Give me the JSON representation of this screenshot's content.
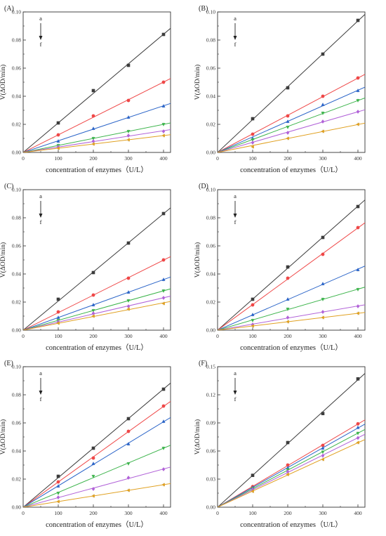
{
  "series_colors": [
    "#3c3c3c",
    "#ef4747",
    "#2a64c8",
    "#3cb44b",
    "#b162d8",
    "#e0a020"
  ],
  "chart_data": [
    {
      "panel_label": "(A)",
      "type": "scatter",
      "xlabel": "concentration of enzymes（U/L）",
      "ylabel": "V(ΔOD/min)",
      "xlim": [
        0,
        420
      ],
      "ylim": [
        0,
        0.1
      ],
      "xticks": [
        0,
        100,
        200,
        300,
        400
      ],
      "yticks": [
        0,
        0.02,
        0.04,
        0.06,
        0.08,
        0.1
      ],
      "ytick_labels": [
        "0.00",
        "0.02",
        "0.04",
        "0.06",
        "0.08",
        "0.10"
      ],
      "arrow_top_label": "a",
      "arrow_bottom_label": "f",
      "x": [
        0,
        100,
        200,
        300,
        400
      ],
      "series": [
        {
          "marker": "square",
          "values": [
            0,
            0.021,
            0.044,
            0.062,
            0.084
          ]
        },
        {
          "marker": "circle",
          "values": [
            0,
            0.0125,
            0.026,
            0.037,
            0.05
          ]
        },
        {
          "marker": "triangle-up",
          "values": [
            0,
            0.008,
            0.017,
            0.025,
            0.033
          ]
        },
        {
          "marker": "triangle-down",
          "values": [
            0,
            0.005,
            0.01,
            0.015,
            0.02
          ]
        },
        {
          "marker": "diamond",
          "values": [
            0,
            0.004,
            0.008,
            0.012,
            0.015
          ]
        },
        {
          "marker": "triangle-left",
          "values": [
            0,
            0.003,
            0.006,
            0.009,
            0.012
          ]
        }
      ]
    },
    {
      "panel_label": "(B)",
      "type": "scatter",
      "xlabel": "concentration of enzymes（U/L）",
      "ylabel": "V(ΔOD/min)",
      "xlim": [
        0,
        420
      ],
      "ylim": [
        0,
        0.1
      ],
      "xticks": [
        0,
        100,
        200,
        300,
        400
      ],
      "yticks": [
        0,
        0.02,
        0.04,
        0.06,
        0.08,
        0.1
      ],
      "ytick_labels": [
        "0.00",
        "0.02",
        "0.04",
        "0.06",
        "0.08",
        "0.10"
      ],
      "arrow_top_label": "a",
      "arrow_bottom_label": "f",
      "x": [
        0,
        100,
        200,
        300,
        400
      ],
      "series": [
        {
          "marker": "square",
          "values": [
            0,
            0.024,
            0.046,
            0.07,
            0.094
          ]
        },
        {
          "marker": "circle",
          "values": [
            0,
            0.013,
            0.026,
            0.04,
            0.053
          ]
        },
        {
          "marker": "triangle-up",
          "values": [
            0,
            0.01,
            0.022,
            0.034,
            0.044
          ]
        },
        {
          "marker": "triangle-down",
          "values": [
            0,
            0.009,
            0.018,
            0.028,
            0.037
          ]
        },
        {
          "marker": "diamond",
          "values": [
            0,
            0.007,
            0.014,
            0.022,
            0.029
          ]
        },
        {
          "marker": "triangle-left",
          "values": [
            0,
            0.004,
            0.01,
            0.015,
            0.02
          ]
        }
      ]
    },
    {
      "panel_label": "(C)",
      "type": "scatter",
      "xlabel": "concentration of enzymes（U/L）",
      "ylabel": "V(ΔOD/min)",
      "xlim": [
        0,
        420
      ],
      "ylim": [
        0,
        0.1
      ],
      "xticks": [
        0,
        100,
        200,
        300,
        400
      ],
      "yticks": [
        0,
        0.02,
        0.04,
        0.06,
        0.08,
        0.1
      ],
      "ytick_labels": [
        "0.00",
        "0.02",
        "0.04",
        "0.06",
        "0.08",
        "0.10"
      ],
      "arrow_top_label": "a",
      "arrow_bottom_label": "f",
      "x": [
        0,
        100,
        200,
        300,
        400
      ],
      "series": [
        {
          "marker": "square",
          "values": [
            0,
            0.022,
            0.041,
            0.062,
            0.083
          ]
        },
        {
          "marker": "circle",
          "values": [
            0,
            0.013,
            0.025,
            0.037,
            0.05
          ]
        },
        {
          "marker": "triangle-up",
          "values": [
            0,
            0.009,
            0.018,
            0.027,
            0.036
          ]
        },
        {
          "marker": "triangle-down",
          "values": [
            0,
            0.007,
            0.014,
            0.021,
            0.028
          ]
        },
        {
          "marker": "diamond",
          "values": [
            0,
            0.006,
            0.012,
            0.017,
            0.023
          ]
        },
        {
          "marker": "triangle-left",
          "values": [
            0,
            0.005,
            0.01,
            0.015,
            0.019
          ]
        }
      ]
    },
    {
      "panel_label": "(D)",
      "type": "scatter",
      "xlabel": "concentration of enzymes（U/L）",
      "ylabel": "V(ΔOD/min)",
      "xlim": [
        0,
        420
      ],
      "ylim": [
        0,
        0.1
      ],
      "xticks": [
        0,
        100,
        200,
        300,
        400
      ],
      "yticks": [
        0,
        0.02,
        0.04,
        0.06,
        0.08,
        0.1
      ],
      "ytick_labels": [
        "0.00",
        "0.02",
        "0.04",
        "0.06",
        "0.08",
        "0.10"
      ],
      "arrow_top_label": "a",
      "arrow_bottom_label": "f",
      "x": [
        0,
        100,
        200,
        300,
        400
      ],
      "series": [
        {
          "marker": "square",
          "values": [
            0,
            0.022,
            0.045,
            0.066,
            0.088
          ]
        },
        {
          "marker": "circle",
          "values": [
            0,
            0.018,
            0.037,
            0.054,
            0.073
          ]
        },
        {
          "marker": "triangle-up",
          "values": [
            0,
            0.011,
            0.022,
            0.033,
            0.043
          ]
        },
        {
          "marker": "triangle-down",
          "values": [
            0,
            0.007,
            0.015,
            0.022,
            0.029
          ]
        },
        {
          "marker": "diamond",
          "values": [
            0,
            0.004,
            0.009,
            0.013,
            0.017
          ]
        },
        {
          "marker": "triangle-left",
          "values": [
            0,
            0.003,
            0.006,
            0.009,
            0.012
          ]
        }
      ]
    },
    {
      "panel_label": "(E)",
      "type": "scatter",
      "xlabel": "concentration of enzymes（U/L）",
      "ylabel": "V(ΔOD/min)",
      "xlim": [
        0,
        420
      ],
      "ylim": [
        0,
        0.1
      ],
      "xticks": [
        0,
        100,
        200,
        300,
        400
      ],
      "yticks": [
        0,
        0.02,
        0.04,
        0.06,
        0.08,
        0.1
      ],
      "ytick_labels": [
        "0.00",
        "0.02",
        "0.04",
        "0.06",
        "0.08",
        "0.10"
      ],
      "arrow_top_label": "a",
      "arrow_bottom_label": "f",
      "x": [
        0,
        100,
        200,
        300,
        400
      ],
      "series": [
        {
          "marker": "square",
          "values": [
            0,
            0.022,
            0.042,
            0.063,
            0.084
          ]
        },
        {
          "marker": "circle",
          "values": [
            0,
            0.018,
            0.035,
            0.054,
            0.072
          ]
        },
        {
          "marker": "triangle-up",
          "values": [
            0,
            0.015,
            0.031,
            0.045,
            0.061
          ]
        },
        {
          "marker": "triangle-down",
          "values": [
            0,
            0.01,
            0.022,
            0.031,
            0.042
          ]
        },
        {
          "marker": "diamond",
          "values": [
            0,
            0.007,
            0.013,
            0.021,
            0.027
          ]
        },
        {
          "marker": "triangle-left",
          "values": [
            0,
            0.004,
            0.008,
            0.012,
            0.016
          ]
        }
      ]
    },
    {
      "panel_label": "(F)",
      "type": "scatter",
      "xlabel": "concentration of enzymes（U/L）",
      "ylabel": "V(ΔOD/min)",
      "xlim": [
        0,
        420
      ],
      "ylim": [
        0,
        0.15
      ],
      "xticks": [
        0,
        100,
        200,
        300,
        400
      ],
      "yticks": [
        0,
        0.03,
        0.06,
        0.09,
        0.12,
        0.15
      ],
      "ytick_labels": [
        "0.00",
        "0.03",
        "0.06",
        "0.09",
        "0.12",
        "0.15"
      ],
      "arrow_top_label": "a",
      "arrow_bottom_label": "f",
      "x": [
        0,
        100,
        200,
        300,
        400
      ],
      "series": [
        {
          "marker": "square",
          "values": [
            0,
            0.034,
            0.069,
            0.1,
            0.137
          ]
        },
        {
          "marker": "circle",
          "values": [
            0,
            0.022,
            0.045,
            0.066,
            0.089
          ]
        },
        {
          "marker": "triangle-up",
          "values": [
            0,
            0.021,
            0.042,
            0.063,
            0.085
          ]
        },
        {
          "marker": "triangle-down",
          "values": [
            0,
            0.02,
            0.04,
            0.059,
            0.079
          ]
        },
        {
          "marker": "diamond",
          "values": [
            0,
            0.019,
            0.038,
            0.055,
            0.074
          ]
        },
        {
          "marker": "triangle-left",
          "values": [
            0,
            0.017,
            0.035,
            0.051,
            0.069
          ]
        }
      ]
    }
  ]
}
